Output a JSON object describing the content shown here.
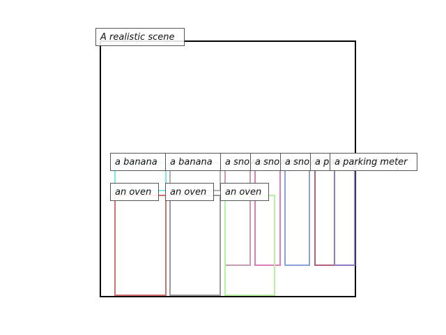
{
  "scene": {
    "title": "A realistic scene",
    "frame_color": "#000000"
  },
  "objects": [
    {
      "label": "a banana",
      "color": "#7ee8e6"
    },
    {
      "label": "a banana",
      "color": "#b0b0b0"
    },
    {
      "label": "a snowboard",
      "color": "#c49ab0"
    },
    {
      "label": "a snowboard",
      "color": "#e07ab8"
    },
    {
      "label": "a snowboard",
      "color": "#8aa0d8"
    },
    {
      "label": "a parking meter",
      "color": "#b0607a"
    },
    {
      "label": "a parking meter",
      "color": "#8a7ac8"
    },
    {
      "label": "an oven",
      "color": "#d07070"
    },
    {
      "label": "an oven",
      "color": "#999999"
    },
    {
      "label": "an oven",
      "color": "#b8f0a0"
    }
  ]
}
